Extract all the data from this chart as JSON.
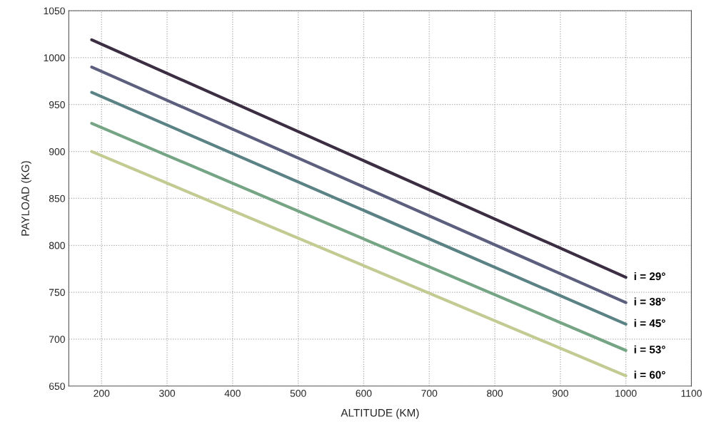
{
  "chart_data": {
    "type": "line",
    "xlabel": "ALTITUDE (KM)",
    "ylabel": "PAYLOAD (KG)",
    "x": [
      185,
      1000
    ],
    "series": [
      {
        "name": "i = 29°",
        "color": "#3b2d42",
        "values": [
          1019,
          766
        ]
      },
      {
        "name": "i = 38°",
        "color": "#5c5f7e",
        "values": [
          990,
          739
        ]
      },
      {
        "name": "i = 45°",
        "color": "#5b8284",
        "values": [
          963,
          716
        ]
      },
      {
        "name": "i = 53°",
        "color": "#76a585",
        "values": [
          930,
          688
        ]
      },
      {
        "name": "i = 60°",
        "color": "#c3cb93",
        "values": [
          900,
          661
        ]
      }
    ],
    "xlim": [
      150,
      1100
    ],
    "xticks": [
      200,
      300,
      400,
      500,
      600,
      700,
      800,
      900,
      1000,
      1100
    ],
    "ylim": [
      650,
      1050
    ],
    "yticks": [
      650,
      700,
      750,
      800,
      850,
      900,
      950,
      1000,
      1050
    ],
    "grid": true,
    "line_style": "solid",
    "marker": "none",
    "legend": false
  }
}
